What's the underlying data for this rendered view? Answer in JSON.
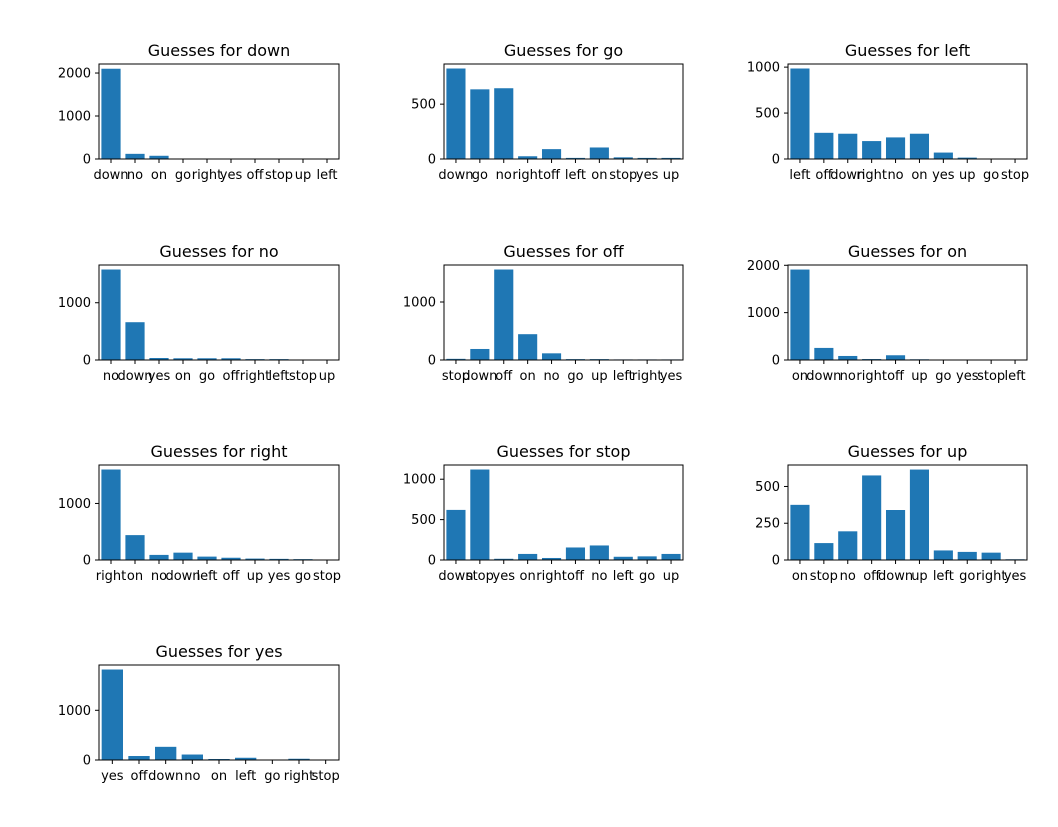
{
  "colors": {
    "bar": "#1f77b4",
    "axis": "#000000",
    "background": "#ffffff"
  },
  "chart_data": [
    {
      "type": "bar",
      "title": "Guesses for down",
      "categories": [
        "down",
        "no",
        "on",
        "go",
        "right",
        "yes",
        "off",
        "stop",
        "up",
        "left"
      ],
      "values": [
        2100,
        120,
        75,
        5,
        5,
        5,
        5,
        5,
        5,
        5
      ],
      "yticks": [
        0,
        1000,
        2000
      ],
      "ylim": [
        0,
        2210
      ]
    },
    {
      "type": "bar",
      "title": "Guesses for go",
      "categories": [
        "down",
        "go",
        "no",
        "right",
        "off",
        "left",
        "on",
        "stop",
        "yes",
        "up"
      ],
      "values": [
        825,
        635,
        645,
        25,
        90,
        10,
        105,
        15,
        10,
        10
      ],
      "yticks": [
        0,
        500
      ],
      "ylim": [
        0,
        866
      ]
    },
    {
      "type": "bar",
      "title": "Guesses for left",
      "categories": [
        "left",
        "off",
        "down",
        "right",
        "no",
        "on",
        "yes",
        "up",
        "go",
        "stop"
      ],
      "values": [
        985,
        285,
        275,
        195,
        235,
        275,
        70,
        15,
        5,
        5
      ],
      "yticks": [
        0,
        500,
        1000
      ],
      "ylim": [
        0,
        1034
      ]
    },
    {
      "type": "bar",
      "title": "Guesses for no",
      "categories": [
        "no",
        "down",
        "yes",
        "on",
        "go",
        "off",
        "right",
        "left",
        "stop",
        "up"
      ],
      "values": [
        1580,
        660,
        35,
        30,
        30,
        30,
        15,
        15,
        5,
        5
      ],
      "yticks": [
        0,
        1000
      ],
      "ylim": [
        0,
        1659
      ]
    },
    {
      "type": "bar",
      "title": "Guesses for off",
      "categories": [
        "stop",
        "down",
        "off",
        "on",
        "no",
        "go",
        "up",
        "left",
        "right",
        "yes"
      ],
      "values": [
        20,
        190,
        1560,
        445,
        115,
        15,
        15,
        10,
        10,
        10
      ],
      "yticks": [
        0,
        1000
      ],
      "ylim": [
        0,
        1638
      ]
    },
    {
      "type": "bar",
      "title": "Guesses for on",
      "categories": [
        "on",
        "down",
        "no",
        "right",
        "off",
        "up",
        "go",
        "yes",
        "stop",
        "left"
      ],
      "values": [
        1910,
        255,
        85,
        20,
        100,
        15,
        5,
        5,
        5,
        10
      ],
      "yticks": [
        0,
        1000,
        2000
      ],
      "ylim": [
        0,
        2006
      ]
    },
    {
      "type": "bar",
      "title": "Guesses for right",
      "categories": [
        "right",
        "on",
        "no",
        "down",
        "left",
        "off",
        "up",
        "yes",
        "go",
        "stop"
      ],
      "values": [
        1600,
        440,
        90,
        130,
        60,
        40,
        25,
        20,
        15,
        5
      ],
      "yticks": [
        0,
        1000
      ],
      "ylim": [
        0,
        1680
      ]
    },
    {
      "type": "bar",
      "title": "Guesses for stop",
      "categories": [
        "down",
        "stop",
        "yes",
        "on",
        "right",
        "off",
        "no",
        "left",
        "go",
        "up"
      ],
      "values": [
        620,
        1120,
        15,
        75,
        25,
        155,
        180,
        40,
        45,
        75
      ],
      "yticks": [
        0,
        500,
        1000
      ],
      "ylim": [
        0,
        1176
      ]
    },
    {
      "type": "bar",
      "title": "Guesses for up",
      "categories": [
        "on",
        "stop",
        "no",
        "off",
        "down",
        "up",
        "left",
        "go",
        "right",
        "yes"
      ],
      "values": [
        375,
        115,
        195,
        575,
        340,
        615,
        65,
        55,
        50,
        5
      ],
      "yticks": [
        0,
        250,
        500
      ],
      "ylim": [
        0,
        646
      ]
    },
    {
      "type": "bar",
      "title": "Guesses for yes",
      "categories": [
        "yes",
        "off",
        "down",
        "no",
        "on",
        "left",
        "go",
        "right",
        "stop"
      ],
      "values": [
        1820,
        80,
        265,
        110,
        20,
        45,
        5,
        25,
        5
      ],
      "yticks": [
        0,
        1000
      ],
      "ylim": [
        0,
        1911
      ]
    }
  ]
}
